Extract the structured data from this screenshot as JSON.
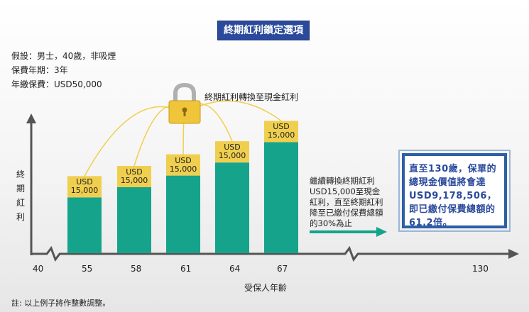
{
  "title": "終期紅利鎖定選項",
  "assumptions": [
    "假設：男士，40歲，非吸煙",
    "保費年期：3年",
    "年繳保費：USD50,000"
  ],
  "lock_label": "終期紅利轉換至現金紅利",
  "y_axis_label": "終期紅利",
  "note": "繼續轉換終期紅利USD15,000至現金紅利，直至終期紅利降至已繳付保費總額的30%為止",
  "callout": "直至130歲，保單的總現金價值將會達USD9,178,506，即已繳付保費總額的61.2倍。",
  "x_axis_label": "受保人年齡",
  "footnote": "註: 以上例子將作整數調整。",
  "colors": {
    "bar": "#16a38b",
    "tag": "#f0cf4f",
    "title_bg": "#2b4a9c",
    "callout_border": "#2b5fa6",
    "arrow": "#16a38b"
  },
  "chart_data": {
    "type": "bar",
    "x_ticks": [
      "40",
      "55",
      "58",
      "61",
      "64",
      "67",
      "130"
    ],
    "categories": [
      "55",
      "58",
      "61",
      "64",
      "67"
    ],
    "bar_labels": [
      {
        "currency": "USD",
        "amount": "15,000"
      },
      {
        "currency": "USD",
        "amount": "15,000"
      },
      {
        "currency": "USD",
        "amount": "15,000"
      },
      {
        "currency": "USD",
        "amount": "15,000"
      },
      {
        "currency": "USD",
        "amount": "15,000"
      }
    ],
    "relative_heights": [
      0.53,
      0.6,
      0.68,
      0.77,
      0.91
    ],
    "xlabel": "受保人年齡",
    "ylabel": "終期紅利"
  }
}
